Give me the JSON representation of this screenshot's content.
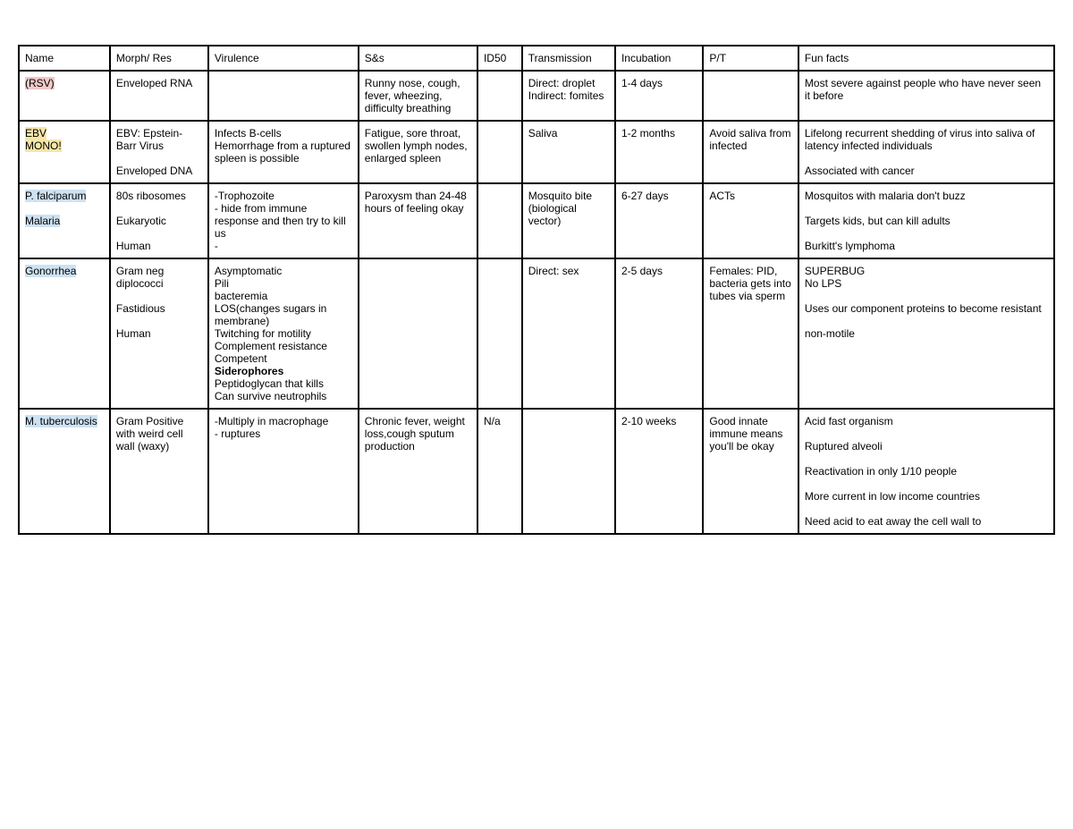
{
  "table": {
    "columns": [
      "Name",
      "Morph/ Res",
      "Virulence",
      "S&s",
      "ID50",
      "Transmission",
      "Incubation",
      "P/T",
      "Fun facts"
    ],
    "column_widths_pct": [
      8.8,
      9.5,
      14.5,
      11.5,
      4.3,
      9,
      8.5,
      9.2,
      24.7
    ],
    "border_color": "#000000",
    "background_color": "#ffffff",
    "font_family": "Arial",
    "font_size_pt": 9,
    "highlight_colors": {
      "pink": "#f2c8c8",
      "yellow": "#f5e6a8",
      "blue": "#cde2f2"
    },
    "rows": [
      {
        "name_segments": [
          {
            "text": "(RSV)",
            "highlight": "pink"
          }
        ],
        "morph": "Enveloped RNA",
        "virulence": "",
        "ss": "Runny nose, cough, fever, wheezing, difficulty breathing",
        "id50": "",
        "transmission": "Direct: droplet\nIndirect: fomites",
        "incubation": "1-4 days",
        "pt": "",
        "funfacts": "Most severe against people who have never seen it before"
      },
      {
        "name_segments": [
          {
            "text": "EBV",
            "highlight": "yellow"
          },
          {
            "text": "MONO!",
            "highlight": "yellow"
          }
        ],
        "morph": "EBV: Epstein-Barr Virus\n\nEnveloped DNA",
        "virulence": "Infects B-cells\nHemorrhage from a ruptured spleen is possible",
        "ss": "Fatigue, sore throat, swollen lymph nodes, enlarged spleen",
        "id50": "",
        "transmission": "Saliva",
        "incubation": "1-2 months",
        "pt": "Avoid saliva from infected",
        "funfacts": "Lifelong recurrent shedding of virus into saliva of latency infected individuals\n\nAssociated with cancer"
      },
      {
        "name_segments": [
          {
            "text": "P. falciparum",
            "highlight": "blue"
          },
          {
            "text": "",
            "highlight": null
          },
          {
            "text": "Malaria",
            "highlight": "blue"
          }
        ],
        "morph": "80s ribosomes\n\nEukaryotic\n\nHuman",
        "virulence": "-Trophozoite\n- hide from immune response and then try to kill us\n-",
        "ss": "Paroxysm than 24-48 hours of feeling okay",
        "id50": "",
        "transmission": "Mosquito bite (biological vector)",
        "incubation": "6-27 days",
        "pt": "ACTs",
        "funfacts": "Mosquitos with malaria don't buzz\n\nTargets kids, but can kill adults\n\nBurkitt's lymphoma"
      },
      {
        "name_segments": [
          {
            "text": "Gonorrhea",
            "highlight": "blue"
          }
        ],
        "morph": "Gram neg diplococci\n\nFastidious\n\nHuman",
        "virulence_segments": [
          {
            "text": "Asymptomatic",
            "bold": false
          },
          {
            "text": "Pili",
            "bold": false
          },
          {
            "text": "bacteremia",
            "bold": false
          },
          {
            "text": "LOS(changes sugars in membrane)",
            "bold": false
          },
          {
            "text": "Twitching for motility",
            "bold": false
          },
          {
            "text": "Complement resistance",
            "bold": false
          },
          {
            "text": "Competent",
            "bold": false
          },
          {
            "text": "Siderophores",
            "bold": true
          },
          {
            "text": "Peptidoglycan that kills",
            "bold": false
          },
          {
            "text": "Can survive neutrophils",
            "bold": false
          }
        ],
        "ss": "",
        "id50": "",
        "transmission": "Direct: sex",
        "incubation": "2-5 days",
        "pt": "Females: PID, bacteria gets into tubes via sperm",
        "funfacts": "SUPERBUG\nNo LPS\n\nUses our component proteins to become resistant\n\nnon-motile"
      },
      {
        "name_segments": [
          {
            "text": "M. tuberculosis",
            "highlight": "blue"
          }
        ],
        "morph": "Gram Positive with weird cell wall (waxy)",
        "virulence": "-Multiply in macrophage\n- ruptures",
        "ss": "Chronic fever, weight loss,cough sputum production",
        "id50": "N/a",
        "transmission": "",
        "incubation": "2-10 weeks",
        "pt": "Good innate immune means you'll be okay",
        "funfacts": "Acid fast organism\n\nRuptured alveoli\n\nReactivation in only 1/10 people\n\nMore current in low income countries\n\nNeed acid to eat away the cell wall to"
      }
    ]
  }
}
